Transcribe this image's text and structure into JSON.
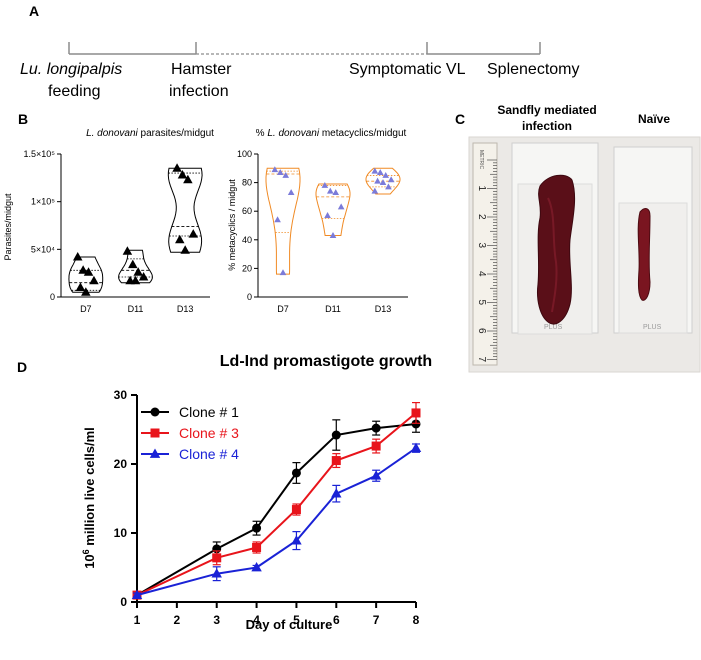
{
  "panels": {
    "a": "A",
    "b": "B",
    "c": "C",
    "d": "D"
  },
  "timeline": {
    "lu_line1": "Lu. longipalpis",
    "lu_line2": "feeding",
    "hamster_line1": "Hamster",
    "hamster_line2": "infection",
    "symptomatic": "Symptomatic VL",
    "splenectomy": "Splenectomy"
  },
  "photo": {
    "label_left_line1": "Sandfly mediated",
    "label_left_line2": "infection",
    "label_right": "Naïve",
    "ruler_marks": [
      "1",
      "2",
      "3",
      "4",
      "5",
      "6",
      "7"
    ],
    "ruler_brand": "METRIC",
    "slide_text": "PLUS"
  },
  "colors": {
    "clone1": "#000000",
    "clone3": "#e8141b",
    "clone4": "#1a22d6",
    "violin_b2": "#f08a24",
    "triangle_b2": "#7b7bd9",
    "timeline": "#8c8c8c",
    "spleen": "#5a0f18"
  },
  "chart_data": [
    {
      "type": "violin",
      "title_italic": "L. donovani",
      "title_rest": " parasites/midgut",
      "ylabel": "Parasites/midgut",
      "ylim": [
        0,
        150000
      ],
      "yticks": [
        {
          "value": 0,
          "label": "0"
        },
        {
          "value": 50000,
          "label": "5×10⁴"
        },
        {
          "value": 100000,
          "label": "1×10⁵"
        },
        {
          "value": 150000,
          "label": "1.5×10⁵"
        }
      ],
      "categories": [
        "D7",
        "D11",
        "D13"
      ],
      "series": [
        {
          "name": "D7",
          "range": [
            5000,
            42000
          ],
          "quartiles": [
            7000,
            15000,
            28000
          ],
          "points": [
            42000,
            28000,
            26000,
            17000,
            10000,
            5000
          ]
        },
        {
          "name": "D11",
          "range": [
            15000,
            49000
          ],
          "quartiles": [
            21000,
            28000,
            40000
          ],
          "points": [
            48000,
            34000,
            26000,
            21000,
            17000,
            17000
          ]
        },
        {
          "name": "D13",
          "range": [
            47000,
            135000
          ],
          "quartiles": [
            64000,
            74000,
            130000
          ],
          "points": [
            135000,
            128000,
            123000,
            66000,
            60000,
            49000
          ]
        }
      ]
    },
    {
      "type": "violin",
      "title_prefix": "% ",
      "title_italic": "L. donovani",
      "title_rest": " metacyclics/midgut",
      "ylabel": "% metacyclics / midgut",
      "ylim": [
        0,
        100
      ],
      "yticks": [
        {
          "value": 0,
          "label": "0"
        },
        {
          "value": 20,
          "label": "20"
        },
        {
          "value": 40,
          "label": "40"
        },
        {
          "value": 60,
          "label": "60"
        },
        {
          "value": 80,
          "label": "80"
        },
        {
          "value": 100,
          "label": "100"
        }
      ],
      "categories": [
        "D7",
        "D11",
        "D13"
      ],
      "series": [
        {
          "name": "D7",
          "range": [
            16,
            90
          ],
          "quartiles": [
            45,
            86,
            88
          ],
          "points": [
            89,
            87,
            85,
            73,
            54,
            17
          ]
        },
        {
          "name": "D11",
          "range": [
            43,
            79
          ],
          "quartiles": [
            55,
            70,
            78
          ],
          "points": [
            78,
            74,
            73,
            63,
            57,
            43
          ]
        },
        {
          "name": "D13",
          "range": [
            72,
            90
          ],
          "quartiles": [
            77,
            81,
            85
          ],
          "points": [
            88,
            87,
            85,
            82,
            81,
            80,
            77,
            74
          ]
        }
      ]
    },
    {
      "type": "line",
      "title": "Ld-Ind promastigote growth",
      "xlabel": "Day of culture",
      "ylabel_sup": "6",
      "ylabel_base": "10",
      "ylabel_rest": " million live cells/ml",
      "x": [
        1,
        3,
        4,
        5,
        6,
        7,
        8
      ],
      "xticks": [
        "1",
        "2",
        "3",
        "4",
        "5",
        "6",
        "7",
        "8"
      ],
      "xlim": [
        1,
        8
      ],
      "ylim": [
        0,
        30
      ],
      "yticks": [
        "0",
        "10",
        "20",
        "30"
      ],
      "series": [
        {
          "name": "Clone # 1",
          "marker": "circle",
          "values": [
            1,
            7.7,
            10.7,
            18.7,
            24.2,
            25.2,
            25.8
          ],
          "errors": [
            0.3,
            1.0,
            1.0,
            1.5,
            2.2,
            1.0,
            1.2
          ]
        },
        {
          "name": "Clone # 3",
          "marker": "square",
          "values": [
            1,
            6.4,
            7.9,
            13.4,
            20.5,
            22.6,
            27.4
          ],
          "errors": [
            0.3,
            1.0,
            0.8,
            0.8,
            1.0,
            1.0,
            1.5
          ]
        },
        {
          "name": "Clone # 4",
          "marker": "triangle",
          "values": [
            1,
            4.1,
            5.0,
            8.9,
            15.7,
            18.3,
            22.3
          ],
          "errors": [
            0.3,
            1.0,
            0.3,
            1.3,
            1.2,
            0.8,
            0.6
          ]
        }
      ]
    }
  ]
}
